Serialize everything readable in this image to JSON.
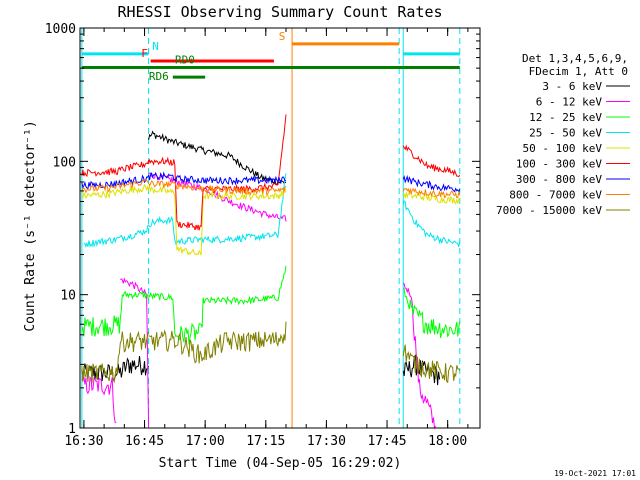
{
  "chart_data": {
    "type": "line",
    "title": "RHESSI Observing Summary Count Rates",
    "xlabel": "Start Time (04-Sep-05 16:29:02)",
    "ylabel": "Count Rate (s⁻¹ detector⁻¹)",
    "ylog": true,
    "ylim": [
      1,
      1000
    ],
    "xlim": [
      "16:29:02",
      "18:08:00"
    ],
    "x_ticks": [
      "16:30",
      "16:45",
      "17:00",
      "17:15",
      "17:30",
      "17:45",
      "18:00"
    ],
    "y_ticks": [
      "1",
      "10",
      "100",
      "1000"
    ],
    "footer_date": "19-Oct-2021 17:01",
    "legend": {
      "header": [
        "Det 1,3,4,5,6,9,",
        "FDecim 1, Att 0"
      ],
      "placement": "right"
    },
    "series": [
      {
        "name": "3 - 6 keV",
        "color": "#000000",
        "segments": [
          [
            [
              "16:29:30",
              2.6
            ],
            [
              "16:39:00",
              2.6
            ],
            [
              "16:41:00",
              3.0
            ],
            [
              "16:44:00",
              3.0
            ],
            [
              "16:46:00",
              3.0
            ]
          ],
          [
            [
              "16:46:00",
              150
            ],
            [
              "16:47:00",
              160
            ],
            [
              "16:52:00",
              140
            ],
            [
              "17:00:00",
              120
            ],
            [
              "17:06:00",
              110
            ],
            [
              "17:10:00",
              90
            ],
            [
              "17:14:00",
              75
            ],
            [
              "17:18:00",
              70
            ],
            [
              "17:20:00",
              70
            ]
          ],
          [
            [
              "17:49:00",
              2.6
            ],
            [
              "17:52:00",
              3.0
            ],
            [
              "17:55:00",
              2.6
            ],
            [
              "17:58:00",
              2.5
            ]
          ]
        ]
      },
      {
        "name": "6 - 12 keV",
        "color": "#ff00ff",
        "segments": [
          [
            [
              "16:29:30",
              2.1
            ],
            [
              "16:37:00",
              2.1
            ],
            [
              "16:38:00",
              1.0
            ]
          ],
          [
            [
              "16:39:00",
              13
            ],
            [
              "16:42:00",
              12
            ],
            [
              "16:45:30",
              10
            ],
            [
              "16:46:00",
              1.0
            ]
          ],
          [
            [
              "16:46:00",
              80
            ],
            [
              "16:48:00",
              78
            ],
            [
              "16:55:00",
              68
            ],
            [
              "17:00:00",
              62
            ],
            [
              "17:05:00",
              52
            ],
            [
              "17:10:00",
              45
            ],
            [
              "17:15:00",
              40
            ],
            [
              "17:19:00",
              37
            ],
            [
              "17:20:00",
              37
            ]
          ],
          [
            [
              "17:49:00",
              12
            ],
            [
              "17:51:00",
              10
            ],
            [
              "17:53:00",
              2.0
            ],
            [
              "17:55:00",
              1.5
            ],
            [
              "17:57:00",
              1.0
            ]
          ]
        ]
      },
      {
        "name": "12 - 25 keV",
        "color": "#00ff00",
        "segments": [
          [
            [
              "16:29:30",
              5.8
            ],
            [
              "16:39:00",
              6.0
            ],
            [
              "16:39:30",
              10
            ],
            [
              "16:45:00",
              10
            ],
            [
              "16:46:00",
              9.5
            ]
          ],
          [
            [
              "16:46:00",
              9.8
            ],
            [
              "16:52:00",
              9.5
            ],
            [
              "16:52:30",
              5.0
            ],
            [
              "16:59:00",
              5.2
            ],
            [
              "16:59:30",
              9.0
            ],
            [
              "17:10:00",
              9.0
            ],
            [
              "17:18:00",
              9.5
            ],
            [
              "17:20:00",
              16
            ]
          ],
          [
            [
              "17:49:00",
              11
            ],
            [
              "17:51:00",
              7.5
            ],
            [
              "17:55:00",
              6.0
            ],
            [
              "18:00:00",
              5.5
            ],
            [
              "18:03:00",
              5.5
            ]
          ]
        ]
      },
      {
        "name": "25 - 50 keV",
        "color": "#00e5ee",
        "segments": [
          [
            [
              "16:30:00",
              24
            ],
            [
              "16:38:00",
              26
            ],
            [
              "16:42:00",
              28
            ],
            [
              "16:45:00",
              30
            ],
            [
              "16:46:00",
              32
            ]
          ],
          [
            [
              "16:46:00",
              34
            ],
            [
              "16:49:00",
              36
            ],
            [
              "16:52:00",
              36
            ],
            [
              "16:52:30",
              25
            ],
            [
              "16:59:00",
              26
            ],
            [
              "17:04:00",
              26
            ],
            [
              "17:12:00",
              27
            ],
            [
              "17:18:00",
              28
            ],
            [
              "17:20:00",
              80
            ]
          ],
          [
            [
              "17:49:00",
              50
            ],
            [
              "17:52:00",
              35
            ],
            [
              "17:55:00",
              28
            ],
            [
              "18:00:00",
              25
            ],
            [
              "18:03:00",
              24
            ]
          ]
        ]
      },
      {
        "name": "50 - 100 keV",
        "color": "#e0e000",
        "segments": [
          [
            [
              "16:29:30",
              55
            ],
            [
              "16:36:00",
              57
            ],
            [
              "16:40:00",
              60
            ],
            [
              "16:45:00",
              63
            ],
            [
              "16:46:00",
              63
            ]
          ],
          [
            [
              "16:46:00",
              62
            ],
            [
              "16:50:00",
              60
            ],
            [
              "16:52:30",
              58
            ],
            [
              "16:53:00",
              22
            ],
            [
              "16:59:00",
              20
            ],
            [
              "16:59:30",
              55
            ],
            [
              "17:10:00",
              55
            ],
            [
              "17:18:00",
              55
            ],
            [
              "17:20:00",
              60
            ]
          ],
          [
            [
              "17:49:00",
              56
            ],
            [
              "17:52:00",
              55
            ],
            [
              "17:58:00",
              52
            ],
            [
              "18:03:00",
              51
            ]
          ]
        ]
      },
      {
        "name": "100 - 300 keV",
        "color": "#ff0000",
        "segments": [
          [
            [
              "16:29:30",
              82
            ],
            [
              "16:38:00",
              84
            ],
            [
              "16:40:00",
              88
            ],
            [
              "16:45:00",
              95
            ],
            [
              "16:46:00",
              100
            ]
          ],
          [
            [
              "16:46:00",
              100
            ],
            [
              "16:50:00",
              100
            ],
            [
              "16:52:30",
              98
            ],
            [
              "16:53:00",
              34
            ],
            [
              "16:59:00",
              32
            ],
            [
              "16:59:30",
              62
            ],
            [
              "17:10:00",
              62
            ],
            [
              "17:18:00",
              65
            ],
            [
              "17:19:00",
              120
            ],
            [
              "17:20:00",
              220
            ]
          ],
          [
            [
              "17:49:00",
              130
            ],
            [
              "17:52:00",
              110
            ],
            [
              "17:55:00",
              92
            ],
            [
              "18:00:00",
              85
            ],
            [
              "18:03:00",
              80
            ]
          ]
        ]
      },
      {
        "name": "300 - 800 keV",
        "color": "#0000ff",
        "segments": [
          [
            [
              "16:29:30",
              66
            ],
            [
              "16:36:00",
              67
            ],
            [
              "16:40:00",
              70
            ],
            [
              "16:45:00",
              74
            ],
            [
              "16:46:00",
              75
            ]
          ],
          [
            [
              "16:46:00",
              77
            ],
            [
              "16:52:00",
              77
            ],
            [
              "16:53:00",
              74
            ],
            [
              "17:00:00",
              72
            ],
            [
              "17:10:00",
              72
            ],
            [
              "17:18:00",
              72
            ],
            [
              "17:20:00",
              75
            ]
          ],
          [
            [
              "17:49:00",
              75
            ],
            [
              "17:52:00",
              70
            ],
            [
              "17:58:00",
              64
            ],
            [
              "18:03:00",
              62
            ]
          ]
        ]
      },
      {
        "name": "800 - 7000 keV",
        "color": "#ff8000",
        "segments": [
          [
            [
              "16:29:30",
              62
            ],
            [
              "16:36:00",
              63
            ],
            [
              "16:40:00",
              66
            ],
            [
              "16:45:00",
              70
            ],
            [
              "16:46:00",
              70
            ]
          ],
          [
            [
              "16:46:00",
              68
            ],
            [
              "16:52:00",
              67
            ],
            [
              "17:00:00",
              62
            ],
            [
              "17:10:00",
              60
            ],
            [
              "17:18:00",
              60
            ],
            [
              "17:20:00",
              62
            ]
          ],
          [
            [
              "17:49:00",
              62
            ],
            [
              "17:52:00",
              60
            ],
            [
              "17:58:00",
              57
            ],
            [
              "18:03:00",
              56
            ]
          ]
        ]
      },
      {
        "name": "7000 - 15000 keV",
        "color": "#808000",
        "segments": [
          [
            [
              "16:29:30",
              2.6
            ],
            [
              "16:38:00",
              2.6
            ],
            [
              "16:39:00",
              4.5
            ],
            [
              "16:45:00",
              4.5
            ],
            [
              "16:46:00",
              4.5
            ]
          ],
          [
            [
              "16:46:00",
              4.5
            ],
            [
              "16:53:00",
              4.6
            ],
            [
              "16:59:00",
              3.5
            ],
            [
              "17:05:00",
              4.5
            ],
            [
              "17:10:00",
              4.5
            ],
            [
              "17:18:00",
              4.6
            ],
            [
              "17:20:00",
              5.5
            ]
          ],
          [
            [
              "17:49:00",
              4.0
            ],
            [
              "17:51:00",
              3.2
            ],
            [
              "17:55:00",
              2.8
            ],
            [
              "18:00:00",
              2.6
            ],
            [
              "18:03:00",
              2.6
            ]
          ]
        ]
      }
    ],
    "annotations": [
      {
        "label": "N",
        "color": "#00e5ee",
        "level": 640,
        "intervals": [
          [
            "16:29:30",
            "16:46:00"
          ],
          [
            "17:49:00",
            "18:03:00"
          ]
        ]
      },
      {
        "label": "F",
        "color": "#ff0000",
        "level": 565,
        "intervals": [
          [
            "16:46:30",
            "17:17:00"
          ]
        ]
      },
      {
        "label": "S",
        "color": "#ff8000",
        "level": 760,
        "intervals": [
          [
            "17:21:30",
            "17:48:00"
          ]
        ]
      },
      {
        "label": "RD0",
        "color": "#008000",
        "level": 505,
        "intervals": [
          [
            "16:29:30",
            "18:03:00"
          ]
        ]
      },
      {
        "label": "RD6",
        "color": "#008000",
        "level": 428,
        "intervals": [
          [
            "16:52:00",
            "17:00:00"
          ]
        ]
      }
    ],
    "event_markers": [
      {
        "time": "16:46:00",
        "color": "#00e5ee",
        "style": "dashed"
      },
      {
        "time": "16:29:30",
        "color": "#00e5ee",
        "style": "solid"
      },
      {
        "time": "17:21:30",
        "color": "#ff8000",
        "style": "solid"
      },
      {
        "time": "17:48:00",
        "color": "#00e5ee",
        "style": "dashed"
      },
      {
        "time": "17:49:00",
        "color": "#00e5ee",
        "style": "solid"
      },
      {
        "time": "18:03:00",
        "color": "#00e5ee",
        "style": "dashed"
      }
    ]
  }
}
